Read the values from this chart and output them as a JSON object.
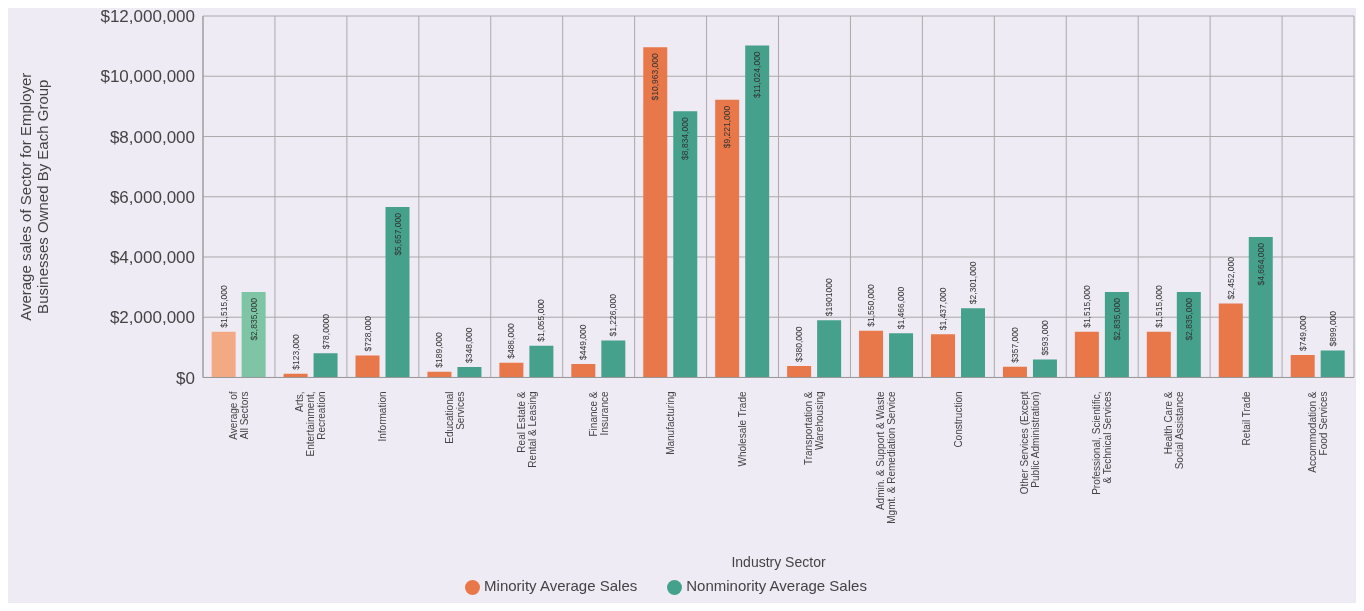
{
  "chart_data": {
    "type": "bar",
    "xlabel": "Industry Sector",
    "ylabel": "Average sales of Sector for Employer\nBusinesses Owned By Each Group",
    "categories": [
      "Average of\nAll Sectors",
      "Arts,\nEntertainment,\nRecreation",
      "Information",
      "Educational\nServices",
      "Real Estate &\nRental & Leasing",
      "Finance &\nInsurance",
      "Manufacturing",
      "Wholesale Trade",
      "Transportation &\nWarehousing",
      "Admin. & Support & Waste\nMgmt. & Remediation Service",
      "Construction",
      "Other Services (Except\nPublic Administration)",
      "Professional, Scientific,\n& Technical Services",
      "Health Care &\nSocial Assistance",
      "Retail Trade",
      "Accommodation &\nFood Services"
    ],
    "series": [
      {
        "name": "Minority Average Sales",
        "color": "#e8774a",
        "colors": [
          "#f3aa84",
          "#e8774a",
          "#e8774a",
          "#e8774a",
          "#e8774a",
          "#e8774a",
          "#e8774a",
          "#e8774a",
          "#e8774a",
          "#e8774a",
          "#e8774a",
          "#e8774a",
          "#e8774a",
          "#e8774a",
          "#e8774a",
          "#e8774a"
        ],
        "values": [
          1515000,
          123000,
          728000,
          189000,
          486000,
          449000,
          10963000,
          9221000,
          380000,
          1550000,
          1437000,
          357000,
          1515000,
          1515000,
          2452000,
          749000
        ],
        "value_labels": [
          "$1,515,000",
          "$123,000",
          "$728,000",
          "$189,000",
          "$486,000",
          "$449,000",
          "$10,963,000",
          "$9,221,000",
          "$380,000",
          "$1,550,000",
          "$1,437,000",
          "$357,000",
          "$1,515,000",
          "$1,515,000",
          "$2,452,000",
          "$749,000"
        ]
      },
      {
        "name": "Nonminority Average Sales",
        "color": "#45a08c",
        "colors": [
          "#7dc5a4",
          "#45a08c",
          "#45a08c",
          "#45a08c",
          "#45a08c",
          "#45a08c",
          "#45a08c",
          "#45a08c",
          "#45a08c",
          "#45a08c",
          "#45a08c",
          "#45a08c",
          "#45a08c",
          "#45a08c",
          "#45a08c",
          "#45a08c"
        ],
        "values": [
          2835000,
          800000,
          5657000,
          348000,
          1055000,
          1226000,
          8834000,
          11024000,
          1901000,
          1466000,
          2301000,
          593000,
          2835000,
          2835000,
          4664000,
          899000
        ],
        "value_labels": [
          "$2,835,000",
          "$78,0000",
          "$5,657,000",
          "$348,000",
          "$1,055,000",
          "$1,226,000",
          "$8,834,000",
          "$11,024,000",
          "$1901000",
          "$1,466,000",
          "$2,301,000",
          "$593,000",
          "$2,835,000",
          "$2,835,000",
          "$4,664,000",
          "$899,000"
        ]
      }
    ],
    "ylim": [
      0,
      12000000
    ],
    "yticks": [
      {
        "value": 0,
        "label": "$0"
      },
      {
        "value": 2000000,
        "label": "$2,000,000"
      },
      {
        "value": 4000000,
        "label": "$4,000,000"
      },
      {
        "value": 6000000,
        "label": "$6,000,000"
      },
      {
        "value": 8000000,
        "label": "$8,000,000"
      },
      {
        "value": 10000000,
        "label": "$10,000,000"
      },
      {
        "value": 12000000,
        "label": "$12,000,000"
      }
    ],
    "grid": true,
    "legend": "bottom"
  }
}
